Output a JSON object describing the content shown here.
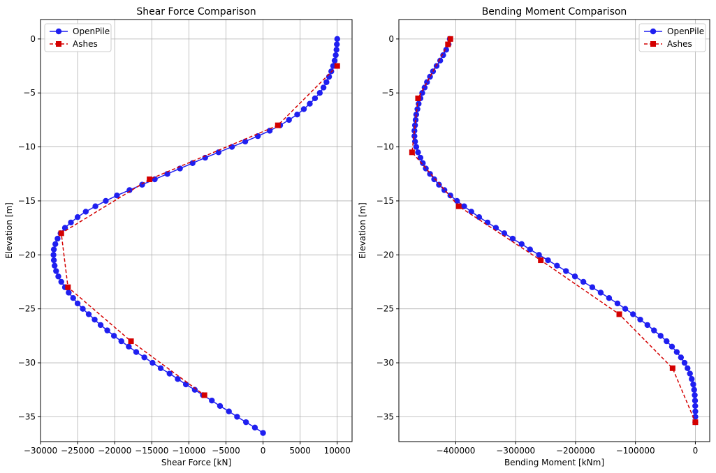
{
  "chart_data": [
    {
      "type": "line",
      "title": "Shear Force Comparison",
      "xlabel": "Shear Force [kN]",
      "ylabel": "Elevation [m]",
      "xlim": [
        -30000,
        12000
      ],
      "ylim": [
        -37.3,
        1.8
      ],
      "xticks": [
        -30000,
        -25000,
        -20000,
        -15000,
        -10000,
        -5000,
        0,
        5000,
        10000
      ],
      "yticks": [
        0,
        -5,
        -10,
        -15,
        -20,
        -25,
        -30,
        -35
      ],
      "grid": true,
      "legend": "top-left",
      "series": [
        {
          "name": "OpenPile",
          "color": "#1f1ff0",
          "linestyle": "solid",
          "marker": "circle",
          "points": [
            [
              10000,
              0
            ],
            [
              9950,
              -0.5
            ],
            [
              9900,
              -1
            ],
            [
              9800,
              -1.5
            ],
            [
              9650,
              -2
            ],
            [
              9450,
              -2.5
            ],
            [
              9200,
              -3
            ],
            [
              8900,
              -3.5
            ],
            [
              8550,
              -4
            ],
            [
              8150,
              -4.5
            ],
            [
              7650,
              -5
            ],
            [
              7000,
              -5.5
            ],
            [
              6300,
              -6
            ],
            [
              5500,
              -6.5
            ],
            [
              4600,
              -7
            ],
            [
              3500,
              -7.5
            ],
            [
              2300,
              -8
            ],
            [
              900,
              -8.5
            ],
            [
              -700,
              -9
            ],
            [
              -2400,
              -9.5
            ],
            [
              -4200,
              -10
            ],
            [
              -6000,
              -10.5
            ],
            [
              -7800,
              -11
            ],
            [
              -9500,
              -11.5
            ],
            [
              -11200,
              -12
            ],
            [
              -12900,
              -12.5
            ],
            [
              -14600,
              -13
            ],
            [
              -16300,
              -13.5
            ],
            [
              -18000,
              -14
            ],
            [
              -19700,
              -14.5
            ],
            [
              -21200,
              -15
            ],
            [
              -22600,
              -15.5
            ],
            [
              -23900,
              -16
            ],
            [
              -25000,
              -16.5
            ],
            [
              -25900,
              -17
            ],
            [
              -26700,
              -17.5
            ],
            [
              -27300,
              -18
            ],
            [
              -27700,
              -18.5
            ],
            [
              -28000,
              -19
            ],
            [
              -28200,
              -19.5
            ],
            [
              -28250,
              -20
            ],
            [
              -28200,
              -20.5
            ],
            [
              -28100,
              -21
            ],
            [
              -27900,
              -21.5
            ],
            [
              -27600,
              -22
            ],
            [
              -27200,
              -22.5
            ],
            [
              -26700,
              -23
            ],
            [
              -26200,
              -23.5
            ],
            [
              -25600,
              -24
            ],
            [
              -25000,
              -24.5
            ],
            [
              -24300,
              -25
            ],
            [
              -23500,
              -25.5
            ],
            [
              -22700,
              -26
            ],
            [
              -21900,
              -26.5
            ],
            [
              -21000,
              -27
            ],
            [
              -20100,
              -27.5
            ],
            [
              -19100,
              -28
            ],
            [
              -18100,
              -28.5
            ],
            [
              -17100,
              -29
            ],
            [
              -16000,
              -29.5
            ],
            [
              -14900,
              -30
            ],
            [
              -13800,
              -30.5
            ],
            [
              -12600,
              -31
            ],
            [
              -11500,
              -31.5
            ],
            [
              -10400,
              -32
            ],
            [
              -9200,
              -32.5
            ],
            [
              -8100,
              -33
            ],
            [
              -6900,
              -33.5
            ],
            [
              -5800,
              -34
            ],
            [
              -4600,
              -34.5
            ],
            [
              -3500,
              -35
            ],
            [
              -2300,
              -35.5
            ],
            [
              -1100,
              -36
            ],
            [
              0,
              -36.5
            ]
          ]
        },
        {
          "name": "Ashes",
          "color": "#d40000",
          "linestyle": "dashed",
          "marker": "square",
          "points": [
            [
              10000,
              -2.5
            ],
            [
              2000,
              -8
            ],
            [
              -15300,
              -13
            ],
            [
              -27200,
              -18
            ],
            [
              -26300,
              -23
            ],
            [
              -17800,
              -28
            ],
            [
              -7900,
              -33
            ]
          ]
        }
      ]
    },
    {
      "type": "line",
      "title": "Bending Moment Comparison",
      "xlabel": "Bending Moment [kNm]",
      "ylabel": "Elevation [m]",
      "xlim": [
        -495000,
        24000
      ],
      "ylim": [
        -37.3,
        1.8
      ],
      "xticks": [
        -400000,
        -300000,
        -200000,
        -100000,
        0
      ],
      "yticks": [
        0,
        -5,
        -10,
        -15,
        -20,
        -25,
        -30,
        -35
      ],
      "grid": true,
      "legend": "top-right",
      "series": [
        {
          "name": "OpenPile",
          "color": "#1f1ff0",
          "linestyle": "solid",
          "marker": "circle",
          "points": [
            [
              -410000,
              0
            ],
            [
              -412000,
              -0.5
            ],
            [
              -416000,
              -1
            ],
            [
              -421000,
              -1.5
            ],
            [
              -426000,
              -2
            ],
            [
              -432000,
              -2.5
            ],
            [
              -438000,
              -3
            ],
            [
              -443000,
              -3.5
            ],
            [
              -448000,
              -4
            ],
            [
              -452000,
              -4.5
            ],
            [
              -456000,
              -5
            ],
            [
              -459000,
              -5.5
            ],
            [
              -462000,
              -6
            ],
            [
              -464000,
              -6.5
            ],
            [
              -466000,
              -7
            ],
            [
              -467000,
              -7.5
            ],
            [
              -468000,
              -8
            ],
            [
              -469000,
              -8.5
            ],
            [
              -469000,
              -9
            ],
            [
              -468000,
              -9.5
            ],
            [
              -466000,
              -10
            ],
            [
              -463000,
              -10.5
            ],
            [
              -459000,
              -11
            ],
            [
              -455000,
              -11.5
            ],
            [
              -450000,
              -12
            ],
            [
              -443000,
              -12.5
            ],
            [
              -436000,
              -13
            ],
            [
              -428000,
              -13.5
            ],
            [
              -419000,
              -14
            ],
            [
              -409000,
              -14.5
            ],
            [
              -398000,
              -15
            ],
            [
              -386000,
              -15.5
            ],
            [
              -374000,
              -16
            ],
            [
              -361000,
              -16.5
            ],
            [
              -347000,
              -17
            ],
            [
              -333000,
              -17.5
            ],
            [
              -319000,
              -18
            ],
            [
              -305000,
              -18.5
            ],
            [
              -290000,
              -19
            ],
            [
              -276000,
              -19.5
            ],
            [
              -261000,
              -20
            ],
            [
              -246000,
              -20.5
            ],
            [
              -231000,
              -21
            ],
            [
              -216000,
              -21.5
            ],
            [
              -201000,
              -22
            ],
            [
              -187000,
              -22.5
            ],
            [
              -172000,
              -23
            ],
            [
              -158000,
              -23.5
            ],
            [
              -144000,
              -24
            ],
            [
              -130000,
              -24.5
            ],
            [
              -117000,
              -25
            ],
            [
              -104000,
              -25.5
            ],
            [
              -92000,
              -26
            ],
            [
              -80000,
              -26.5
            ],
            [
              -69000,
              -27
            ],
            [
              -58000,
              -27.5
            ],
            [
              -48000,
              -28
            ],
            [
              -39000,
              -28.5
            ],
            [
              -31000,
              -29
            ],
            [
              -24000,
              -29.5
            ],
            [
              -18000,
              -30
            ],
            [
              -13000,
              -30.5
            ],
            [
              -9000,
              -31
            ],
            [
              -6000,
              -31.5
            ],
            [
              -3500,
              -32
            ],
            [
              -2000,
              -32.5
            ],
            [
              -1000,
              -33
            ],
            [
              -500,
              -33.5
            ],
            [
              -200,
              -34
            ],
            [
              0,
              -34.5
            ],
            [
              0,
              -35
            ],
            [
              0,
              -35.5
            ]
          ]
        },
        {
          "name": "Ashes",
          "color": "#d40000",
          "linestyle": "dashed",
          "marker": "square",
          "points": [
            [
              -409000,
              0
            ],
            [
              -413000,
              -0.5
            ],
            [
              -463000,
              -5.5
            ],
            [
              -473000,
              -10.5
            ],
            [
              -395000,
              -15.5
            ],
            [
              -258000,
              -20.5
            ],
            [
              -127000,
              -25.5
            ],
            [
              -38000,
              -30.5
            ],
            [
              0,
              -35.5
            ]
          ]
        }
      ]
    }
  ]
}
